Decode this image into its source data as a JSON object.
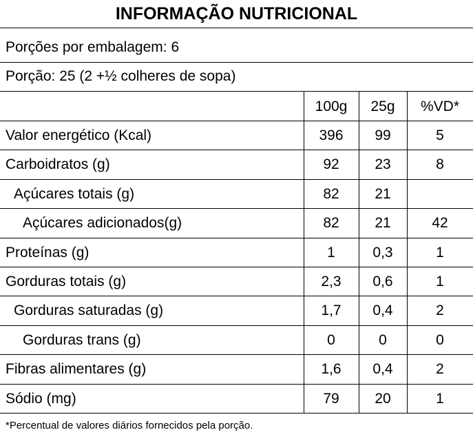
{
  "title": "INFORMAÇÃO NUTRICIONAL",
  "servings_per_package": "Porções por embalagem: 6",
  "serving_size": "Porção: 25 (2 +½ colheres de sopa)",
  "columns": [
    "100g",
    "25g",
    "%VD*"
  ],
  "rows": [
    {
      "label": "Valor energético (Kcal)",
      "indent": 0,
      "v100g": "396",
      "v25g": "99",
      "vd": "5"
    },
    {
      "label": "Carboidratos (g)",
      "indent": 0,
      "v100g": "92",
      "v25g": "23",
      "vd": "8"
    },
    {
      "label": "Açúcares totais (g)",
      "indent": 1,
      "v100g": "82",
      "v25g": "21",
      "vd": ""
    },
    {
      "label": "Açúcares adicionados(g)",
      "indent": 2,
      "v100g": "82",
      "v25g": "21",
      "vd": "42"
    },
    {
      "label": "Proteínas (g)",
      "indent": 0,
      "v100g": "1",
      "v25g": "0,3",
      "vd": "1"
    },
    {
      "label": "Gorduras totais (g)",
      "indent": 0,
      "v100g": "2,3",
      "v25g": "0,6",
      "vd": "1"
    },
    {
      "label": "Gorduras saturadas (g)",
      "indent": 1,
      "v100g": "1,7",
      "v25g": "0,4",
      "vd": "2"
    },
    {
      "label": "Gorduras trans (g)",
      "indent": 2,
      "v100g": "0",
      "v25g": "0",
      "vd": "0"
    },
    {
      "label": "Fibras alimentares (g)",
      "indent": 0,
      "v100g": "1,6",
      "v25g": "0,4",
      "vd": "2"
    },
    {
      "label": "Sódio (mg)",
      "indent": 0,
      "v100g": "79",
      "v25g": "20",
      "vd": "1"
    }
  ],
  "footnote": "*Percentual de valores diários fornecidos pela porção."
}
